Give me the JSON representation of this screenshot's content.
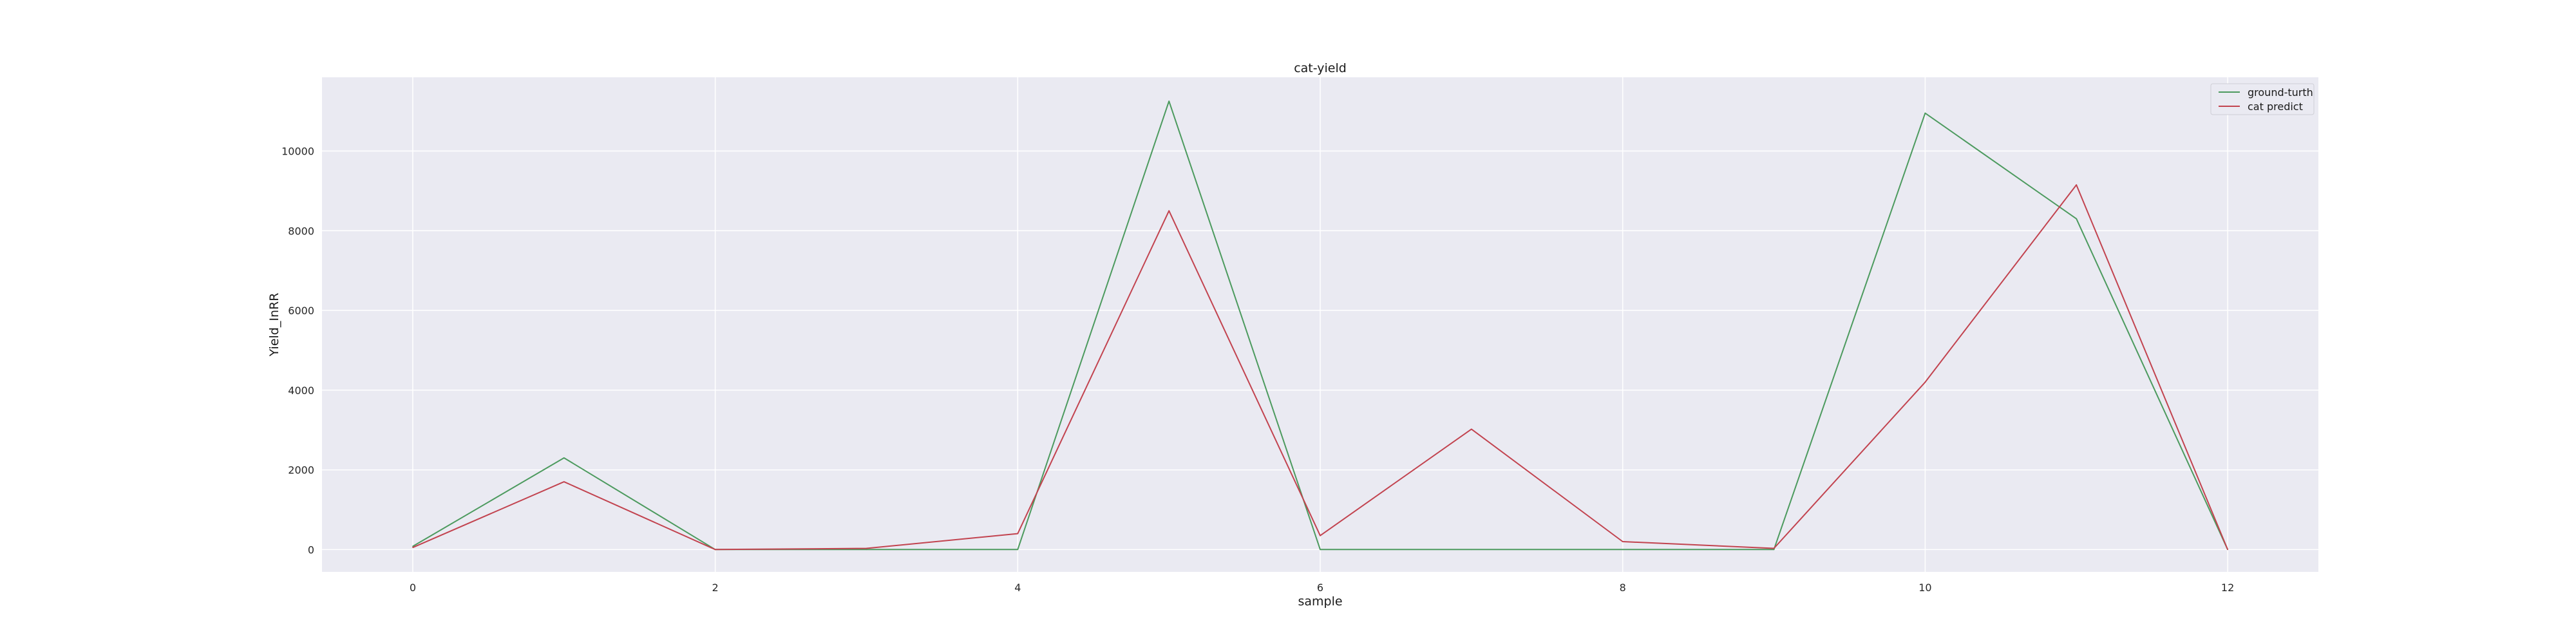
{
  "chart_data": {
    "type": "line",
    "title": "cat-yield",
    "xlabel": "sample",
    "ylabel": "Yield_InRR",
    "x": [
      0,
      1,
      2,
      3,
      4,
      5,
      6,
      7,
      8,
      9,
      10,
      11,
      12
    ],
    "series": [
      {
        "name": "ground-turth",
        "color": "#4c9a5e",
        "values": [
          80,
          2300,
          0,
          0,
          0,
          11250,
          0,
          0,
          0,
          0,
          10950,
          8300,
          0
        ]
      },
      {
        "name": "cat predict",
        "color": "#c2434f",
        "values": [
          50,
          1700,
          0,
          30,
          400,
          8500,
          350,
          3020,
          200,
          30,
          4200,
          9150,
          0
        ]
      }
    ],
    "xlim": [
      -0.6,
      12.6
    ],
    "ylim": [
      -560,
      11850
    ],
    "xticks": [
      0,
      2,
      4,
      6,
      8,
      10,
      12
    ],
    "yticks": [
      0,
      2000,
      4000,
      6000,
      8000,
      10000
    ],
    "grid": true,
    "legend_position": "top-right",
    "colors": {
      "plot_background": "#eaeaf2",
      "grid": "#ffffff"
    }
  }
}
